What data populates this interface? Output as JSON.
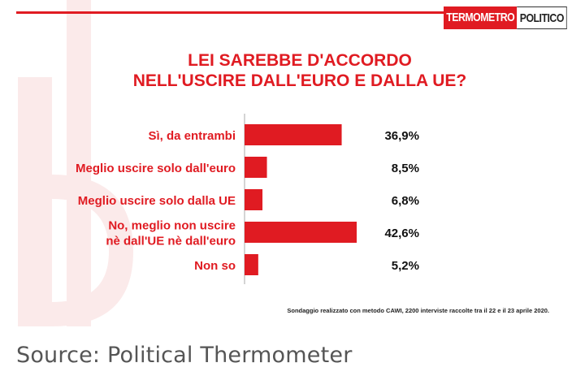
{
  "colors": {
    "accent": "#e01b22",
    "text": "#111111",
    "deco": "#fbeaea",
    "axis": "#aaaaaa"
  },
  "logo": {
    "part1": "TERMOMETRO",
    "part2": "POLITICO"
  },
  "chart_data": {
    "type": "bar",
    "orientation": "horizontal",
    "title_lines": [
      "LEI SAREBBE D'ACCORDO",
      "NELL'USCIRE DALL'EURO E DALLA UE?"
    ],
    "categories": [
      [
        "Sì, da entrambi"
      ],
      [
        "Meglio uscire solo dall'euro"
      ],
      [
        "Meglio uscire solo dalla UE"
      ],
      [
        "No, meglio non uscire",
        "nè dall'UE nè dall'euro"
      ],
      [
        "Non so"
      ]
    ],
    "values": [
      36.9,
      8.5,
      6.8,
      42.6,
      5.2
    ],
    "value_labels": [
      "36,9%",
      "8,5%",
      "6,8%",
      "42,6%",
      "5,2%"
    ],
    "xlim": [
      0,
      42.6
    ]
  },
  "footnote": "Sondaggio realizzato con metodo CAWI, 2200 interviste raccolte tra il 22 e il 23 aprile 2020.",
  "source": "Source: Political Thermometer"
}
